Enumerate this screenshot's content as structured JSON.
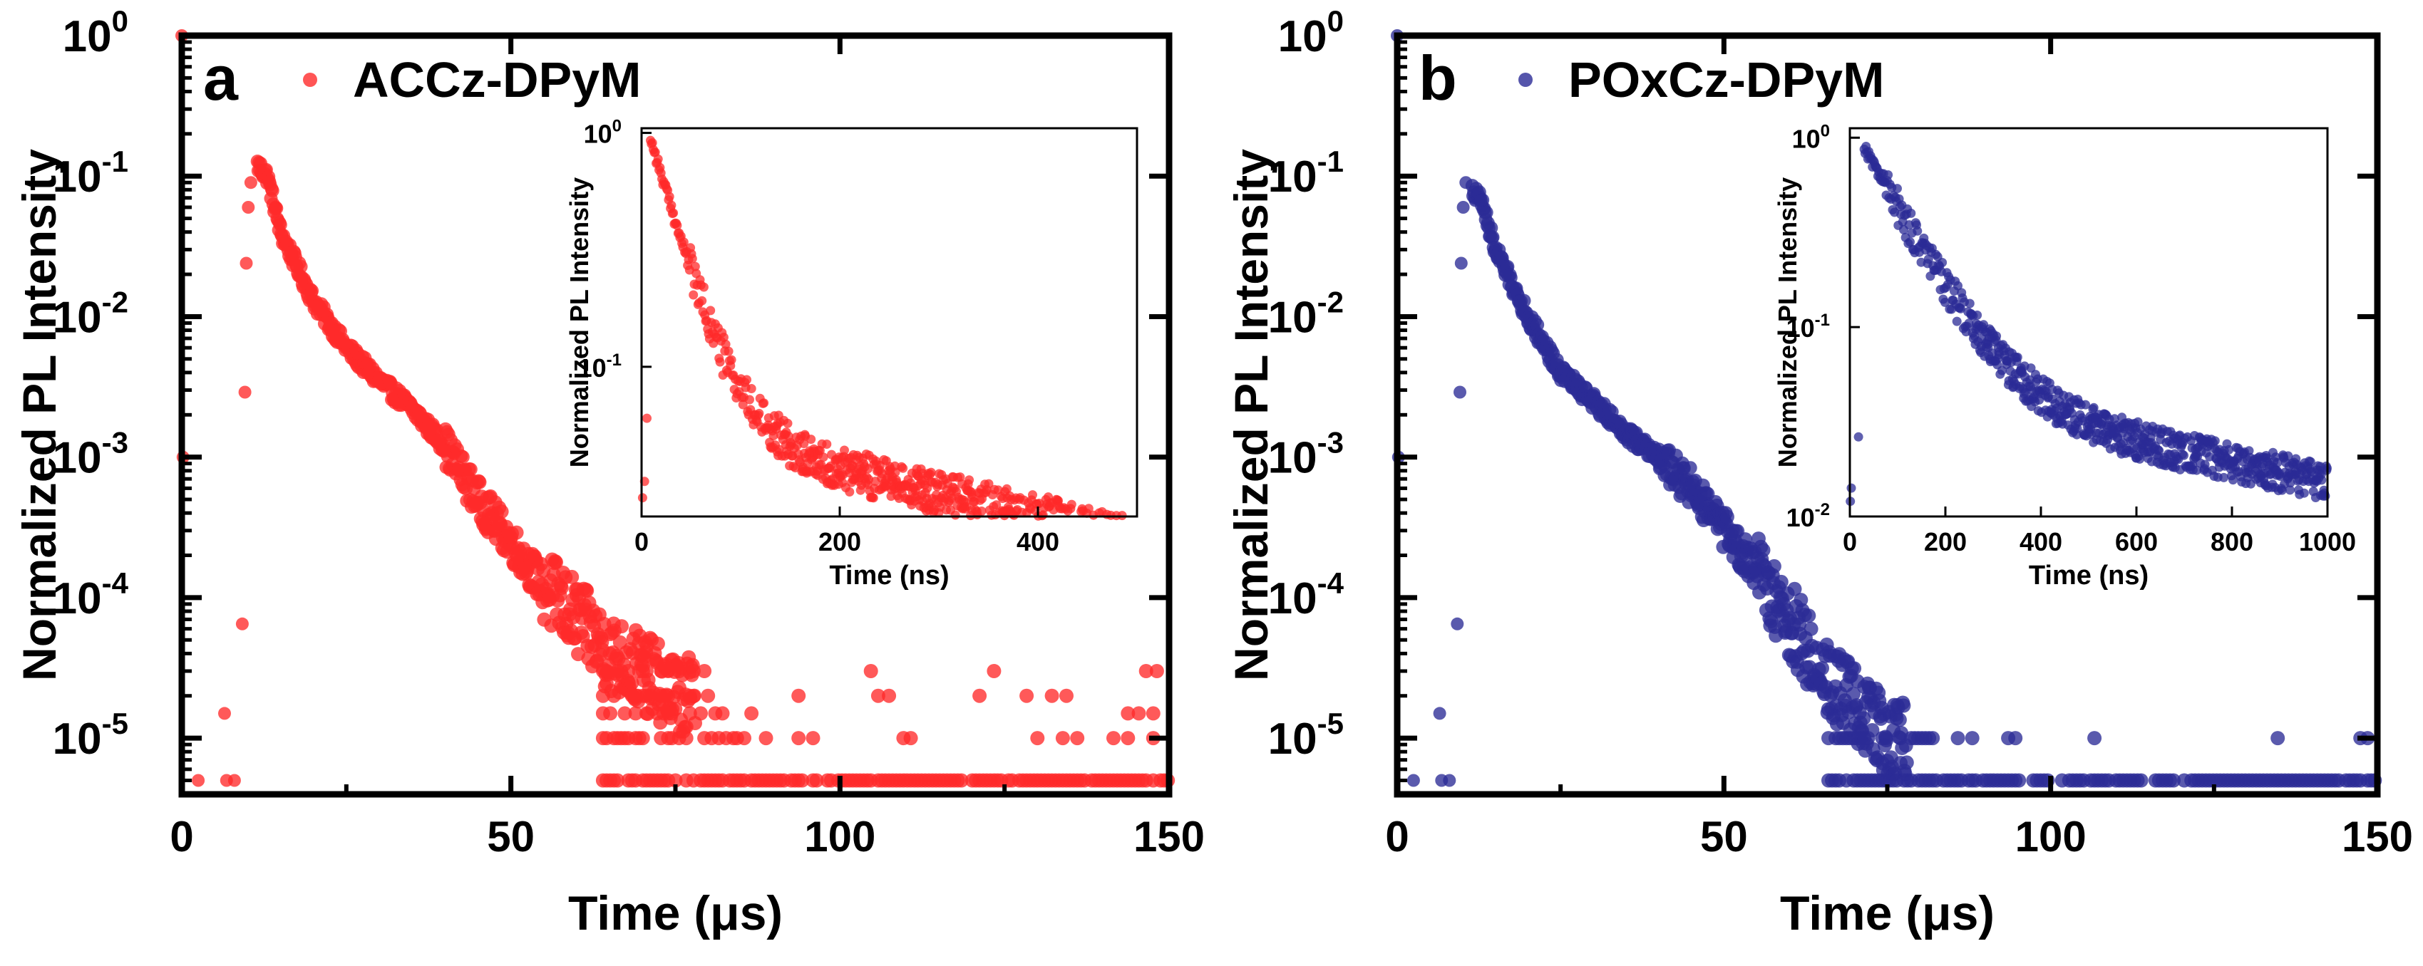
{
  "chart_data": [
    {
      "type": "scatter",
      "panel_label": "a",
      "legend": "ACCz-DPyM",
      "color": "#ff2a2a",
      "xlabel": "Time (μs)",
      "ylabel": "Normalized PL Intensity",
      "xlim": [
        0,
        150
      ],
      "ylim_log10": [
        -5.4,
        0
      ],
      "x_ticks": [
        "0",
        "50",
        "100",
        "150"
      ],
      "y_ticks": [
        {
          "base": "10",
          "exp": "0"
        },
        {
          "base": "10",
          "exp": "-1"
        },
        {
          "base": "10",
          "exp": "-2"
        },
        {
          "base": "10",
          "exp": "-3"
        },
        {
          "base": "10",
          "exp": "-4"
        },
        {
          "base": "10",
          "exp": "-5"
        }
      ],
      "decay": {
        "onset": 10,
        "peak_x": 11.5,
        "peak_y": 0.12,
        "knots": [
          [
            11.5,
            0.12
          ],
          [
            13,
            0.1
          ],
          [
            15,
            0.04
          ],
          [
            20,
            0.013
          ],
          [
            25,
            0.006
          ],
          [
            30,
            0.0035
          ],
          [
            35,
            0.0022
          ],
          [
            40,
            0.0012
          ],
          [
            45,
            0.0005
          ],
          [
            50,
            0.00025
          ],
          [
            55,
            0.00012
          ],
          [
            60,
            7e-05
          ],
          [
            65,
            4e-05
          ],
          [
            70,
            3e-05
          ],
          [
            75,
            2e-05
          ]
        ],
        "floor_levels": [
          5e-06,
          1e-05,
          1.5e-05,
          2e-05,
          3e-05
        ],
        "floor_start": 64,
        "floor_end": 150
      },
      "inset": {
        "xlabel": "Time (ns)",
        "ylabel": "Normalized PL Intensity",
        "xlim": [
          0,
          500
        ],
        "ylim_log10": [
          -1.64,
          0.02
        ],
        "x_ticks": [
          {
            "v": 0,
            "label": "0"
          },
          {
            "v": 200,
            "label": "200"
          },
          {
            "v": 400,
            "label": "400"
          }
        ],
        "y_ticks": [
          {
            "base": "10",
            "exp": "0"
          },
          {
            "base": "10",
            "exp": "-1"
          }
        ],
        "decay": {
          "peak_x": 9,
          "peak_y": 0.98,
          "fast_amp": 0.9,
          "fast_tau": 28,
          "slow_amp": 0.055,
          "slow_tau": 450,
          "noise": 0.09
        }
      }
    },
    {
      "type": "scatter",
      "panel_label": "b",
      "legend": "POxCz-DPyM",
      "color": "#2b2b96",
      "xlabel": "Time (μs)",
      "ylabel": "Normalized PL Intensity",
      "xlim": [
        0,
        150
      ],
      "ylim_log10": [
        -5.4,
        0
      ],
      "x_ticks": [
        "0",
        "50",
        "100",
        "150"
      ],
      "y_ticks": [
        {
          "base": "10",
          "exp": "0"
        },
        {
          "base": "10",
          "exp": "-1"
        },
        {
          "base": "10",
          "exp": "-2"
        },
        {
          "base": "10",
          "exp": "-3"
        },
        {
          "base": "10",
          "exp": "-4"
        },
        {
          "base": "10",
          "exp": "-5"
        }
      ],
      "decay": {
        "onset": 10,
        "peak_x": 11.5,
        "peak_y": 0.08,
        "knots": [
          [
            11.5,
            0.08
          ],
          [
            13,
            0.065
          ],
          [
            15,
            0.03
          ],
          [
            20,
            0.01
          ],
          [
            25,
            0.004
          ],
          [
            30,
            0.0025
          ],
          [
            35,
            0.0015
          ],
          [
            40,
            0.001
          ],
          [
            45,
            0.0006
          ],
          [
            50,
            0.0003
          ],
          [
            55,
            0.00015
          ],
          [
            60,
            7e-05
          ],
          [
            65,
            3e-05
          ],
          [
            70,
            1.8e-05
          ],
          [
            75,
            1e-05
          ]
        ],
        "floor_levels": [
          5e-06,
          1e-05
        ],
        "floor_start": 66,
        "floor_end": 150
      },
      "inset": {
        "xlabel": "Time (ns)",
        "ylabel": "Normalized PL Intensity",
        "xlim": [
          0,
          1000
        ],
        "ylim_log10": [
          -2,
          0.05
        ],
        "x_ticks": [
          {
            "v": 0,
            "label": "0"
          },
          {
            "v": 200,
            "label": "200"
          },
          {
            "v": 400,
            "label": "400"
          },
          {
            "v": 600,
            "label": "600"
          },
          {
            "v": 800,
            "label": "800"
          },
          {
            "v": 1000,
            "label": "1000"
          }
        ],
        "y_ticks": [
          {
            "base": "10",
            "exp": "0"
          },
          {
            "base": "10",
            "exp": "-1"
          },
          {
            "base": "10",
            "exp": "-2"
          }
        ],
        "decay": {
          "peak_x": 30,
          "peak_y": 0.95,
          "fast_amp": 0.85,
          "fast_tau": 90,
          "slow_amp": 0.045,
          "slow_tau": 900,
          "noise": 0.1
        }
      }
    }
  ]
}
